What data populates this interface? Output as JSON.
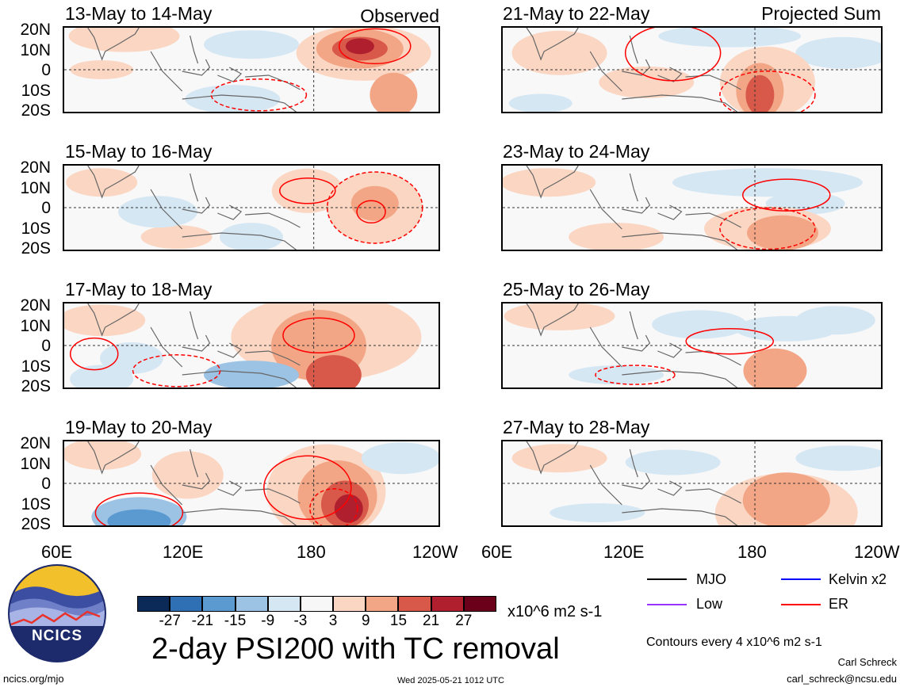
{
  "panels": [
    {
      "title": "13-May to 14-May",
      "tag": "Observed"
    },
    {
      "title": "21-May to 22-May",
      "tag": "Projected Sum"
    },
    {
      "title": "15-May to 16-May",
      "tag": ""
    },
    {
      "title": "23-May to 24-May",
      "tag": ""
    },
    {
      "title": "17-May to 18-May",
      "tag": ""
    },
    {
      "title": "25-May to 26-May",
      "tag": ""
    },
    {
      "title": "19-May to 20-May",
      "tag": ""
    },
    {
      "title": "27-May to 28-May",
      "tag": ""
    }
  ],
  "lat_labels": [
    "20N",
    "10N",
    "0",
    "10S",
    "20S"
  ],
  "lon_labels": [
    "60E",
    "120E",
    "180",
    "120W"
  ],
  "colorbar": {
    "ticks": [
      "-27",
      "-21",
      "-15",
      "-9",
      "-3",
      "3",
      "9",
      "15",
      "21",
      "27"
    ],
    "units": "x10^6 m2 s-1",
    "colors": [
      "#0b2a57",
      "#2f6fb3",
      "#5b9ad0",
      "#9cc3e4",
      "#d6e7f4",
      "#f7f7f7",
      "#fbd6c3",
      "#f2a686",
      "#d8584a",
      "#b01f2e",
      "#6a0019"
    ]
  },
  "main_title": "2-day PSI200 with TC removal",
  "legend": {
    "items": [
      {
        "label": "MJO",
        "color": "#000000"
      },
      {
        "label": "Kelvin x2",
        "color": "#0000ff"
      },
      {
        "label": "Low",
        "color": "#9933ff"
      },
      {
        "label": "ER",
        "color": "#ff0000"
      }
    ],
    "contour_note": "Contours every 4 x10^6 m2 s-1"
  },
  "logo_text": "NCICS",
  "footer": {
    "left": "ncics.org/mjo",
    "center": "Wed 2025-05-21 1012 UTC",
    "author": "Carl Schreck",
    "email": "carl_schreck@ncsu.edu"
  }
}
